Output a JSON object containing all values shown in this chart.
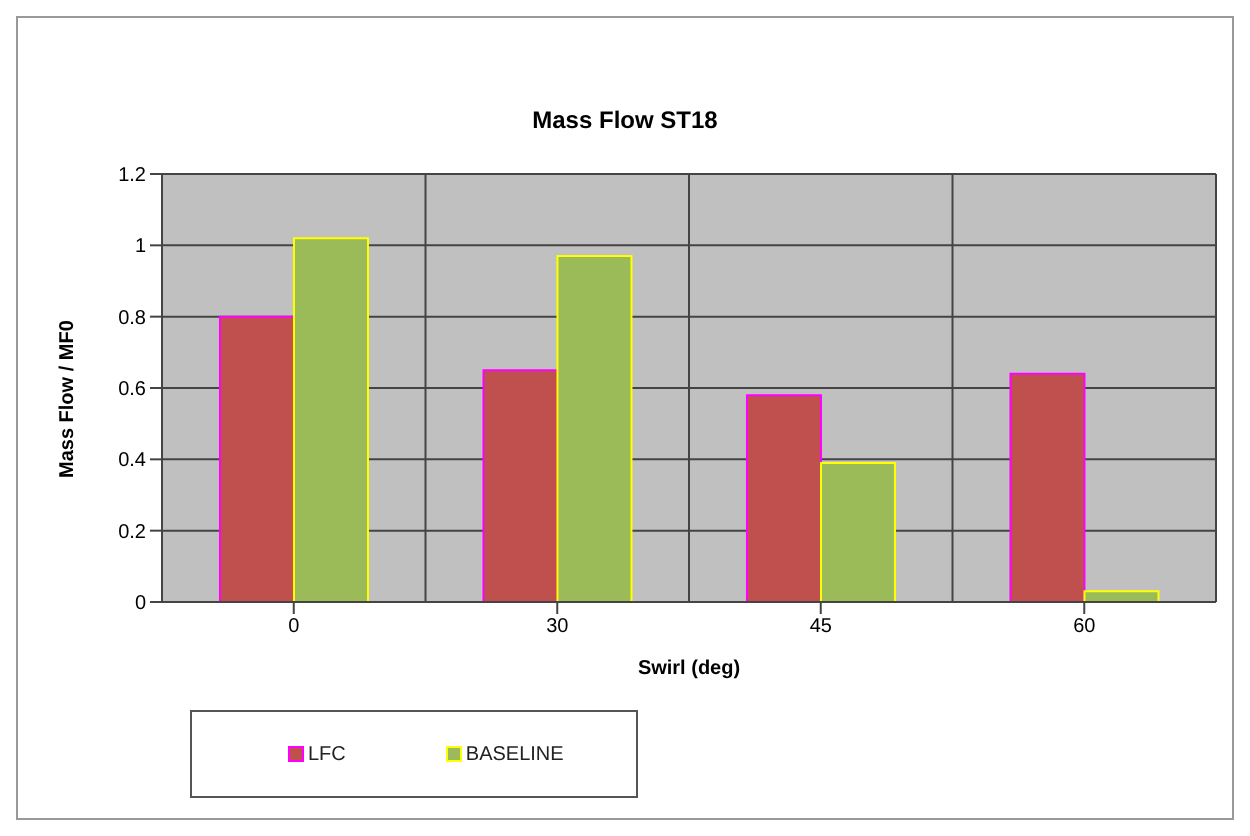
{
  "chart_data": {
    "type": "bar",
    "title": "Mass Flow ST18",
    "xlabel": "Swirl (deg)",
    "ylabel": "Mass Flow / MF0",
    "categories": [
      "0",
      "30",
      "45",
      "60"
    ],
    "series": [
      {
        "name": "LFC",
        "color": "#c0504d",
        "values": [
          0.8,
          0.65,
          0.58,
          0.64
        ]
      },
      {
        "name": "BASELINE",
        "color": "#9bbb59",
        "values": [
          1.02,
          0.97,
          0.39,
          0.03
        ]
      }
    ],
    "ylim": [
      0,
      1.2
    ],
    "yticks": [
      0,
      0.2,
      0.4,
      0.6,
      0.8,
      1,
      1.2
    ],
    "grid": true,
    "legend": "bottom left"
  }
}
